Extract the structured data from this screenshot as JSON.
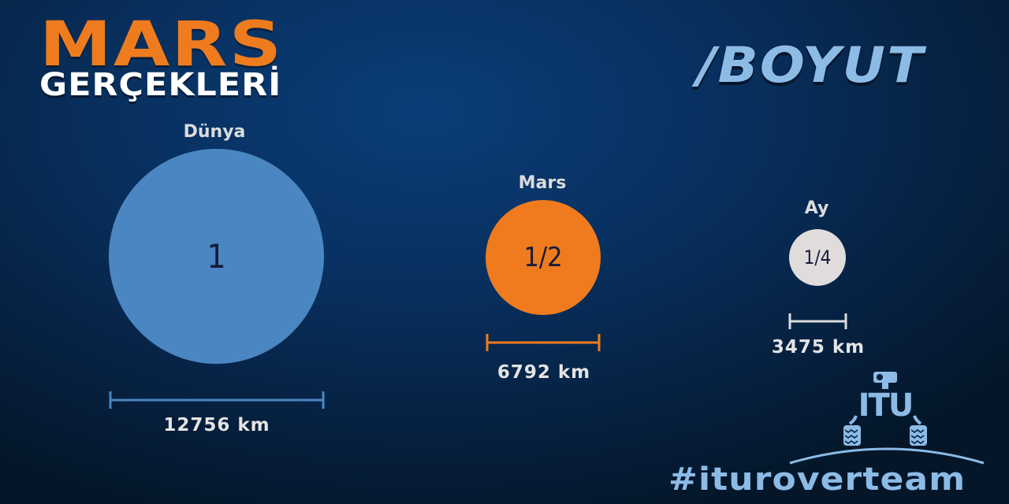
{
  "header": {
    "title": "MARS",
    "subtitle": "GERÇEKLERİ",
    "section": "/BOYUT"
  },
  "bodies": [
    {
      "name": "Dünya",
      "ratio": "1",
      "diameter": "12756 km",
      "color": "#4a86c2"
    },
    {
      "name": "Mars",
      "ratio": "1/2",
      "diameter": "6792 km",
      "color": "#ef7b1e"
    },
    {
      "name": "Ay",
      "ratio": "1/4",
      "diameter": "3475 km",
      "color": "#e0dcdc"
    }
  ],
  "logo": {
    "text": "ITU",
    "icon": "rover-logo-icon",
    "hashtag": "#ituroverteam"
  },
  "colors": {
    "accent": "#ee7c1e",
    "light_blue": "#8cbbe6",
    "background": "#08305f"
  }
}
